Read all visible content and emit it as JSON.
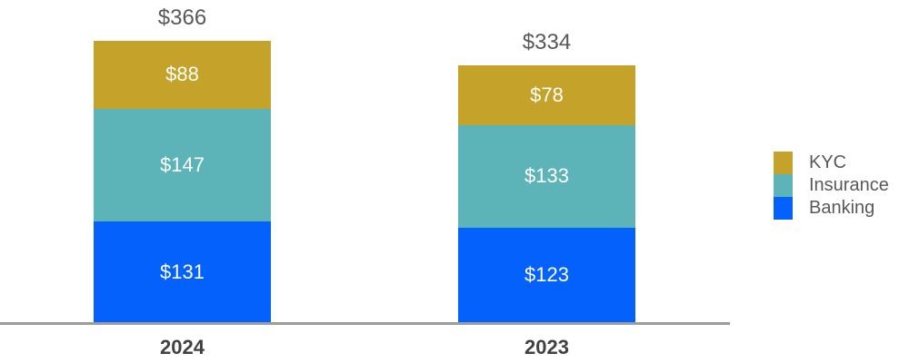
{
  "chart_data": {
    "type": "bar",
    "stacked": true,
    "value_prefix": "$",
    "categories": [
      "2024",
      "2023"
    ],
    "totals": [
      366,
      334
    ],
    "total_labels": [
      "$366",
      "$334"
    ],
    "series": [
      {
        "name": "KYC",
        "color": "#C5A32B",
        "values": [
          88,
          78
        ],
        "labels": [
          "$88",
          "$78"
        ]
      },
      {
        "name": "Insurance",
        "color": "#5CB3B8",
        "values": [
          147,
          133
        ],
        "labels": [
          "$147",
          "$133"
        ]
      },
      {
        "name": "Banking",
        "color": "#0561FC",
        "values": [
          131,
          123
        ],
        "labels": [
          "$131",
          "$123"
        ]
      }
    ],
    "legend_entries": [
      "KYC",
      "Insurance",
      "Banking"
    ],
    "legend_position": "right",
    "grid": false,
    "y_axis_visible": false,
    "x_axis_visible": true,
    "ylim": [
      0,
      366
    ]
  },
  "colors": {
    "background": "#FFFFFF",
    "axis_line": "#9C9C9C",
    "total_label": "#58595B",
    "category_label": "#414141",
    "segment_value_label": "#FFFFFF",
    "legend_label": "#58595B"
  }
}
